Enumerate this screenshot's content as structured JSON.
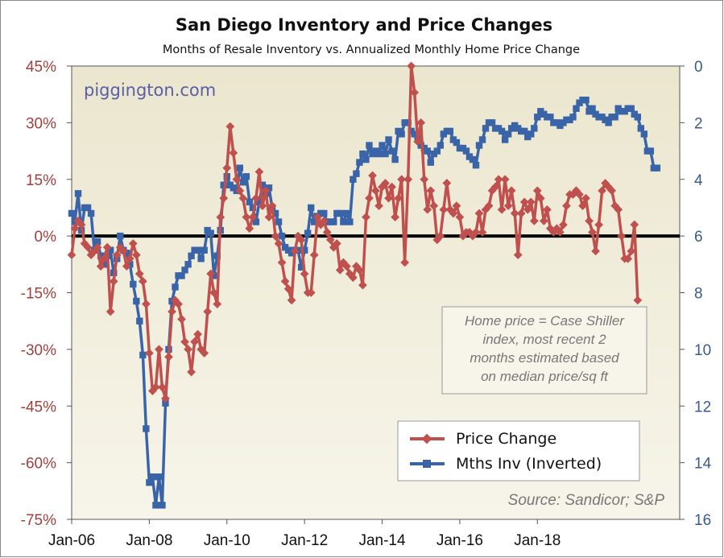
{
  "chart_data": {
    "type": "line",
    "title": "San Diego Inventory and Price Changes",
    "subtitle": "Months of Resale Inventory vs. Annualized Monthly Home Price Change",
    "watermark": "piggington.com",
    "note_lines": [
      "Home price = Case Shiller",
      "index, most recent 2",
      "months estimated based",
      "on median price/sq ft"
    ],
    "source": "Source: Sandicor; S&P",
    "legend_position": "bottom-right",
    "x_ticks": [
      "Jan-06",
      "Jan-08",
      "Jan-10",
      "Jan-12",
      "Jan-14",
      "Jan-16",
      "Jan-18"
    ],
    "y_left_ticks": [
      "45%",
      "30%",
      "15%",
      "0%",
      "-15%",
      "-30%",
      "-45%",
      "-60%",
      "-75%"
    ],
    "y_right_ticks": [
      "0",
      "2",
      "4",
      "6",
      "8",
      "10",
      "12",
      "14",
      "16"
    ],
    "y_left_range": [
      -75,
      45
    ],
    "y_right_range": [
      0,
      16
    ],
    "y_right_inverted": true,
    "x_start": "Jan-06",
    "colors": {
      "price": "#c0504d",
      "inventory": "#3a64a8",
      "plot_bg": "#f0ecd8",
      "zero_line": "#000000"
    },
    "series": [
      {
        "name": "Price Change",
        "axis": "left",
        "values": [
          -5,
          2,
          4,
          3,
          -2,
          -3,
          -5,
          -4,
          -3,
          -8,
          -6,
          -3,
          -20,
          -12,
          -5,
          -3,
          -4,
          -8,
          -6,
          -2,
          -5,
          -10,
          -12,
          -18,
          -31,
          -41,
          -40,
          -30,
          -40,
          -43,
          -32,
          -20,
          -17,
          -18,
          -22,
          -28,
          -30,
          -36,
          -28,
          -26,
          -30,
          -31,
          -20,
          -10,
          -15,
          -18,
          5,
          10,
          18,
          29,
          22,
          15,
          12,
          10,
          5,
          2,
          5,
          10,
          17,
          8,
          12,
          5,
          8,
          0,
          -2,
          -7,
          -12,
          -14,
          -17,
          -4,
          0,
          -1,
          -10,
          -15,
          -15,
          -5,
          5,
          3,
          4,
          1,
          -1,
          -3,
          -2,
          -9,
          -7,
          -8,
          -10,
          -11,
          -8,
          -9,
          -13,
          5,
          10,
          16,
          12,
          8,
          13,
          14,
          10,
          13,
          5,
          10,
          15,
          -7,
          15,
          45,
          38,
          25,
          30,
          15,
          7,
          12,
          8,
          -1,
          0,
          7,
          14,
          7,
          6,
          8,
          5,
          0,
          1,
          1,
          0,
          1,
          6,
          1,
          7,
          8,
          12,
          13,
          15,
          7,
          15,
          8,
          12,
          6,
          -5,
          6,
          9,
          7,
          9,
          4,
          12,
          10,
          4,
          7,
          2,
          1,
          2,
          1,
          3,
          8,
          11,
          11,
          12,
          11,
          8,
          10,
          4,
          1,
          -4,
          3,
          12,
          14,
          13,
          12,
          8,
          7,
          0,
          -6,
          -6,
          -4,
          3,
          -17
        ]
      },
      {
        "name": "Mths Inv (Inverted)",
        "axis": "right",
        "values": [
          5.2,
          5.5,
          4.5,
          5.8,
          5.0,
          5.0,
          5.2,
          6.5,
          6.2,
          6.7,
          7.0,
          6.7,
          6.5,
          7.3,
          6.8,
          6.0,
          6.5,
          6.6,
          7.0,
          7.7,
          8.3,
          9.0,
          10.2,
          12.8,
          14.7,
          14.5,
          15.5,
          14.5,
          15.5,
          11.9,
          10.0,
          8.3,
          7.8,
          7.4,
          7.4,
          7.2,
          7.0,
          6.7,
          6.5,
          6.5,
          6.8,
          6.5,
          5.8,
          5.9,
          7.4,
          6.7,
          5.8,
          4.2,
          3.9,
          4.2,
          4.3,
          4.4,
          3.6,
          4.1,
          3.9,
          4.8,
          5.0,
          5.5,
          4.8,
          4.2,
          4.5,
          4.3,
          5.0,
          5.2,
          5.5,
          6.0,
          6.4,
          6.5,
          6.6,
          6.5,
          6.5,
          7.1,
          6.5,
          5.9,
          5.0,
          5.5,
          5.3,
          5.2,
          5.2,
          5.5,
          5.5,
          5.5,
          5.2,
          5.2,
          5.5,
          5.2,
          5.5,
          4.0,
          3.8,
          3.4,
          3.1,
          3.3,
          2.8,
          3.1,
          3.0,
          3.1,
          2.8,
          3.1,
          2.6,
          3.0,
          3.3,
          2.3,
          2.4,
          2.0,
          2.0,
          2.3,
          2.4,
          2.5,
          2.8,
          2.9,
          3.0,
          3.4,
          3.1,
          3.0,
          2.8,
          2.4,
          2.3,
          2.3,
          2.6,
          2.7,
          2.9,
          2.9,
          3.0,
          3.2,
          3.3,
          3.5,
          2.8,
          2.6,
          2.2,
          2.0,
          2.0,
          2.2,
          2.2,
          2.3,
          2.6,
          2.4,
          2.2,
          2.1,
          2.2,
          2.3,
          2.3,
          2.5,
          2.4,
          2.2,
          1.8,
          1.6,
          1.7,
          1.8,
          1.8,
          2.0,
          2.0,
          2.1,
          2.0,
          1.9,
          1.9,
          1.8,
          1.5,
          1.3,
          1.2,
          1.2,
          1.6,
          1.5,
          1.7,
          1.8,
          1.8,
          1.9,
          2.0,
          1.8,
          1.8,
          1.5,
          1.6,
          1.6,
          1.5,
          1.5,
          1.7,
          1.8,
          2.2,
          2.4,
          3.0,
          3.0,
          3.6,
          3.6
        ]
      }
    ]
  }
}
